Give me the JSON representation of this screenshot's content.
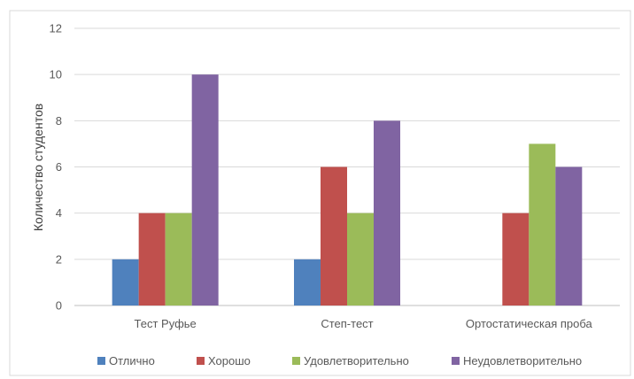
{
  "chart_data": {
    "type": "bar",
    "title": "",
    "xlabel": "",
    "ylabel": "Количество студентов",
    "ylim": [
      0,
      12
    ],
    "yticks": [
      0,
      2,
      4,
      6,
      8,
      10,
      12
    ],
    "grid": true,
    "legend_position": "bottom",
    "categories": [
      "Тест Руфье",
      "Степ-тест",
      "Ортостатическая проба"
    ],
    "series": [
      {
        "name": "Отлично",
        "color": "#4F81BD",
        "values": [
          2,
          2,
          0
        ]
      },
      {
        "name": "Хорошо",
        "color": "#C0504D",
        "values": [
          4,
          6,
          4
        ]
      },
      {
        "name": "Удовлетворительно",
        "color": "#9BBB59",
        "values": [
          4,
          4,
          7
        ]
      },
      {
        "name": "Неудовлетворительно",
        "color": "#8064A2",
        "values": [
          10,
          8,
          6
        ]
      }
    ]
  }
}
